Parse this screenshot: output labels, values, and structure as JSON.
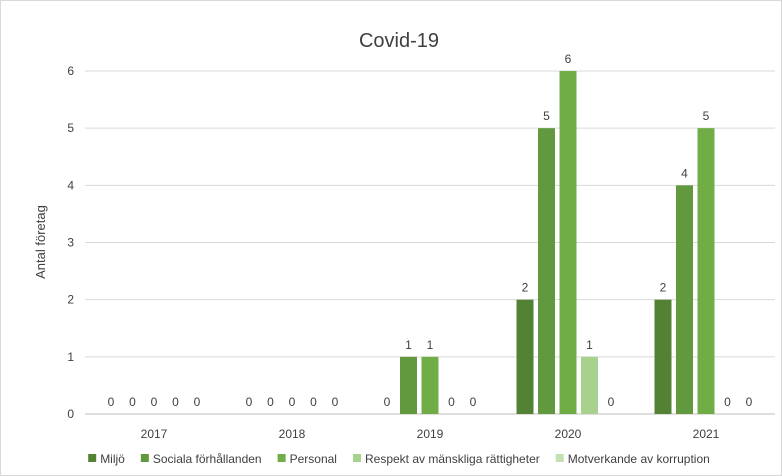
{
  "chart_data": {
    "type": "bar",
    "title": "Covid-19",
    "ylabel": "Antal företag",
    "xlabel": "",
    "ylim": [
      0,
      6
    ],
    "yticks": [
      0,
      1,
      2,
      3,
      4,
      5,
      6
    ],
    "grid": true,
    "legend_position": "bottom",
    "categories": [
      "2017",
      "2018",
      "2019",
      "2020",
      "2021"
    ],
    "series": [
      {
        "name": "Miljö",
        "color": "#548235",
        "values": [
          0,
          0,
          0,
          2,
          2
        ]
      },
      {
        "name": "Sociala förhållanden",
        "color": "#62993e",
        "values": [
          0,
          0,
          1,
          5,
          4
        ]
      },
      {
        "name": "Personal",
        "color": "#70ad47",
        "values": [
          0,
          0,
          1,
          6,
          5
        ]
      },
      {
        "name": "Respekt av mänskliga rättigheter",
        "color": "#a9d18e",
        "values": [
          0,
          0,
          0,
          1,
          0
        ]
      },
      {
        "name": "Motverkande av korruption",
        "color": "#c5e0b4",
        "values": [
          0,
          0,
          0,
          0,
          0
        ]
      }
    ]
  }
}
